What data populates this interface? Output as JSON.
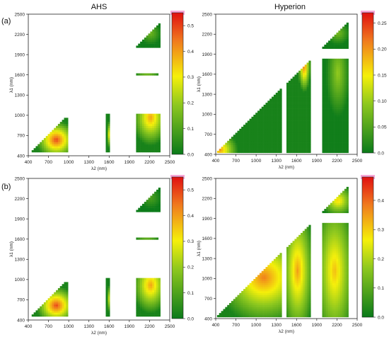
{
  "columns": [
    "AHS",
    "Hyperion"
  ],
  "rows": [
    "(a)",
    "(b)"
  ],
  "colors": {
    "low": "#0a7a1a",
    "mid": "#f5f00a",
    "high": "#e01010",
    "background": "#ffffff"
  },
  "chart_data": [
    {
      "type": "heatmap",
      "panel": "(a) AHS",
      "xlabel": "λ2 (nm)",
      "ylabel": "λ1 (nm)",
      "xlim": [
        400,
        2500
      ],
      "ylim": [
        400,
        2500
      ],
      "xticks": [
        400,
        700,
        1000,
        1300,
        1600,
        1900,
        2200,
        2500
      ],
      "yticks": [
        400,
        700,
        1000,
        1300,
        1600,
        1900,
        2200,
        2500
      ],
      "colorbar": {
        "min": 0.0,
        "max": 0.55,
        "ticks": [
          0.0,
          0.1,
          0.2,
          0.3,
          0.4,
          0.5
        ]
      },
      "regions": [
        {
          "x": [
            450,
            980
          ],
          "y": [
            450,
            950
          ],
          "peak": 0.5,
          "center": [
            800,
            620
          ],
          "spread": 0.6
        },
        {
          "x": [
            1550,
            1600
          ],
          "y": [
            450,
            1000
          ],
          "peak": 0.35,
          "center": [
            1575,
            700
          ],
          "spread": 0.4
        },
        {
          "x": [
            2000,
            2350
          ],
          "y": [
            450,
            1000
          ],
          "peak": 0.4,
          "center": [
            2200,
            950
          ],
          "spread": 0.8
        },
        {
          "x": [
            2000,
            2300
          ],
          "y": [
            1590,
            1610
          ],
          "peak": 0.35,
          "center": [
            2150,
            1600
          ],
          "spread": 0.8
        },
        {
          "x": [
            2000,
            2350
          ],
          "y": [
            2000,
            2350
          ],
          "peak": 0.15,
          "center": [
            2200,
            2200
          ],
          "spread": 0.5
        }
      ]
    },
    {
      "type": "heatmap",
      "panel": "(a) Hyperion",
      "xlabel": "λ2 (nm)",
      "ylabel": "λ1 (nm)",
      "xlim": [
        400,
        2500
      ],
      "ylim": [
        400,
        2500
      ],
      "xticks": [
        400,
        700,
        1000,
        1300,
        1600,
        1900,
        2200,
        2500
      ],
      "yticks": [
        400,
        700,
        1000,
        1300,
        1600,
        1900,
        2200,
        2500
      ],
      "colorbar": {
        "min": 0.0,
        "max": 0.27,
        "ticks": [
          0.0,
          0.05,
          0.1,
          0.15,
          0.2,
          0.25
        ]
      },
      "regions": [
        {
          "x": [
            420,
            1350
          ],
          "y": [
            420,
            1350
          ],
          "peak": 0.2,
          "center": [
            450,
            450
          ],
          "spread": 0.3
        },
        {
          "x": [
            1450,
            1780
          ],
          "y": [
            420,
            1780
          ],
          "peak": 0.22,
          "center": [
            1700,
            1700
          ],
          "spread": 0.3
        },
        {
          "x": [
            1980,
            2350
          ],
          "y": [
            420,
            1800
          ],
          "peak": 0.1,
          "center": [
            2200,
            1600
          ],
          "spread": 0.5
        },
        {
          "x": [
            1980,
            2350
          ],
          "y": [
            1980,
            2350
          ],
          "peak": 0.08,
          "center": [
            2200,
            2200
          ],
          "spread": 0.5
        }
      ]
    },
    {
      "type": "heatmap",
      "panel": "(b) AHS",
      "xlabel": "λ2 (nm)",
      "ylabel": "λ1 (nm)",
      "xlim": [
        400,
        2500
      ],
      "ylim": [
        400,
        2500
      ],
      "xticks": [
        400,
        700,
        1000,
        1300,
        1600,
        1900,
        2200,
        2500
      ],
      "yticks": [
        400,
        700,
        1000,
        1300,
        1600,
        1900,
        2200,
        2500
      ],
      "colorbar": {
        "min": 0.0,
        "max": 0.55,
        "ticks": [
          0.0,
          0.1,
          0.2,
          0.3,
          0.4,
          0.5
        ]
      },
      "regions": [
        {
          "x": [
            450,
            980
          ],
          "y": [
            450,
            950
          ],
          "peak": 0.5,
          "center": [
            800,
            600
          ],
          "spread": 0.6
        },
        {
          "x": [
            1550,
            1600
          ],
          "y": [
            450,
            1000
          ],
          "peak": 0.3,
          "center": [
            1575,
            700
          ],
          "spread": 0.4
        },
        {
          "x": [
            2000,
            2350
          ],
          "y": [
            450,
            1000
          ],
          "peak": 0.4,
          "center": [
            2200,
            900
          ],
          "spread": 0.8
        },
        {
          "x": [
            2000,
            2300
          ],
          "y": [
            1590,
            1610
          ],
          "peak": 0.3,
          "center": [
            2150,
            1600
          ],
          "spread": 0.8
        },
        {
          "x": [
            2000,
            2350
          ],
          "y": [
            2000,
            2350
          ],
          "peak": 0.1,
          "center": [
            2200,
            2200
          ],
          "spread": 0.5
        }
      ]
    },
    {
      "type": "heatmap",
      "panel": "(b) Hyperion",
      "xlabel": "λ2 (nm)",
      "ylabel": "λ1 (nm)",
      "xlim": [
        400,
        2500
      ],
      "ylim": [
        400,
        2500
      ],
      "xticks": [
        400,
        700,
        1000,
        1300,
        1600,
        1900,
        2200,
        2500
      ],
      "yticks": [
        400,
        700,
        1000,
        1300,
        1600,
        1900,
        2200,
        2500
      ],
      "colorbar": {
        "min": 0.0,
        "max": 0.48,
        "ticks": [
          0.0,
          0.1,
          0.2,
          0.3,
          0.4
        ]
      },
      "regions": [
        {
          "x": [
            420,
            1350
          ],
          "y": [
            420,
            1350
          ],
          "peak": 0.38,
          "center": [
            1100,
            1000
          ],
          "spread": 0.8
        },
        {
          "x": [
            1450,
            1780
          ],
          "y": [
            420,
            1780
          ],
          "peak": 0.35,
          "center": [
            1600,
            1100
          ],
          "spread": 0.8
        },
        {
          "x": [
            1980,
            2350
          ],
          "y": [
            420,
            1800
          ],
          "peak": 0.32,
          "center": [
            2150,
            1100
          ],
          "spread": 0.9
        },
        {
          "x": [
            1980,
            2350
          ],
          "y": [
            1980,
            2350
          ],
          "peak": 0.3,
          "center": [
            2200,
            2150
          ],
          "spread": 0.7
        }
      ]
    }
  ]
}
